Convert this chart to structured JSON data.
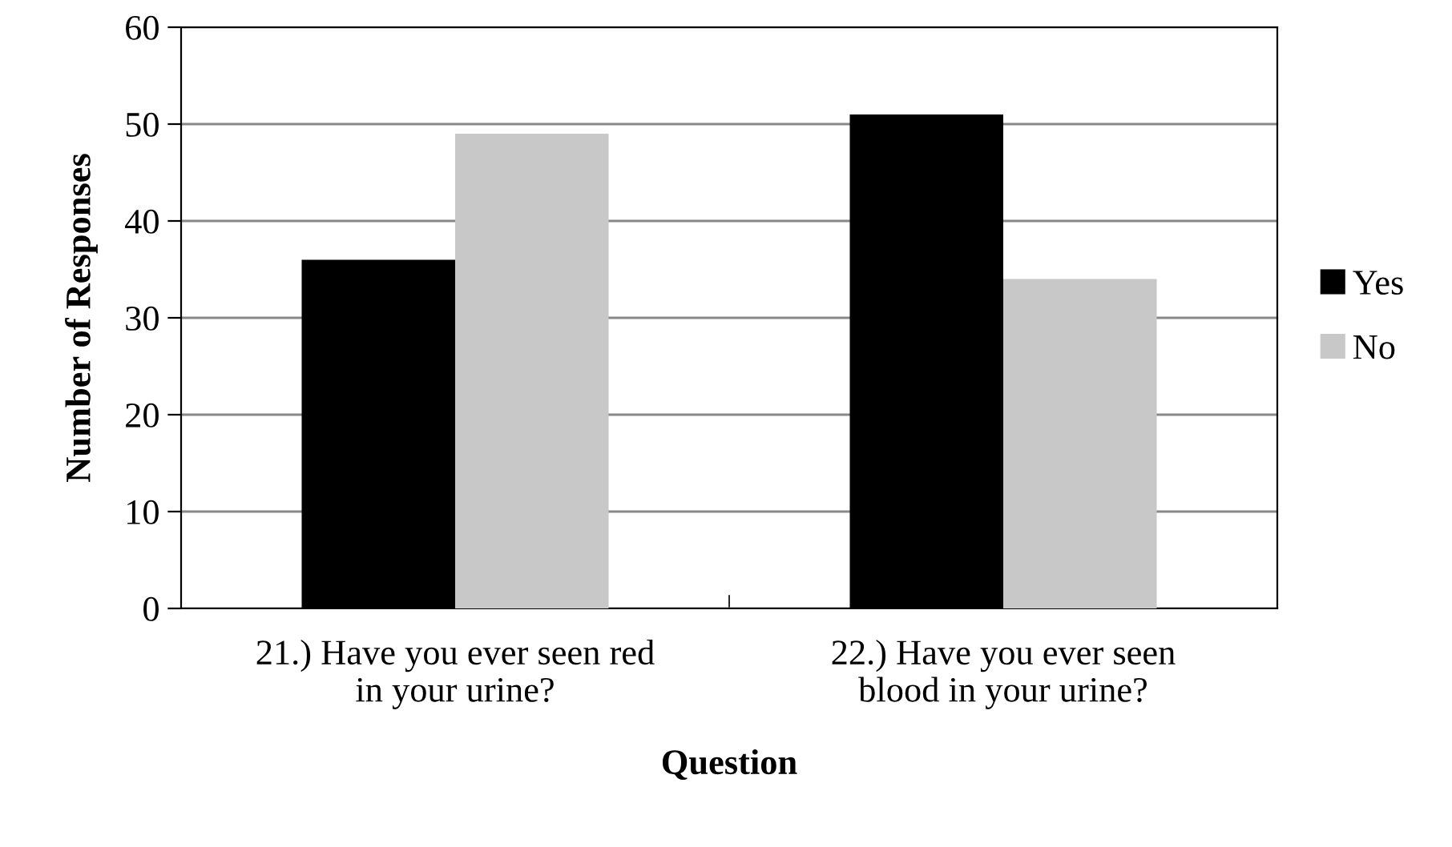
{
  "chart_data": {
    "type": "bar",
    "xlabel": "Question",
    "ylabel": "Number of Responses",
    "categories": [
      "21.) Have you ever seen red\nin your urine?",
      "22.) Have you ever seen\nblood in your urine?"
    ],
    "series": [
      {
        "name": "Yes",
        "color": "#000000",
        "values": [
          36,
          51
        ]
      },
      {
        "name": "No",
        "color": "#c8c8c8",
        "values": [
          49,
          34
        ]
      }
    ],
    "ylim": [
      0,
      60
    ],
    "yticks": [
      0,
      10,
      20,
      30,
      40,
      50,
      60
    ],
    "grid": "y",
    "legend": "right"
  }
}
